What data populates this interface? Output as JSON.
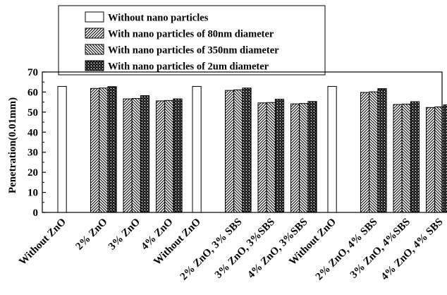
{
  "chart_data": {
    "type": "bar",
    "title": "",
    "xlabel": "",
    "ylabel": "Penetration(0.01mm)",
    "ylim": [
      0,
      70
    ],
    "yticks": [
      0,
      10,
      20,
      30,
      40,
      50,
      60,
      70
    ],
    "grid": false,
    "legend_position": "top-left, outside plot area",
    "categories": [
      "Without ZnO",
      "2% ZnO",
      "3% ZnO",
      "4% ZnO",
      "Without ZnO",
      "2% ZnO, 3% SBS",
      "3% ZnO, 3%SBS",
      "4% ZnO, 3%SBS",
      "Without ZnO",
      "2% ZnO, 4% SBS",
      "3% ZnO, 4%SBS",
      "4% ZnO, 4% SBS"
    ],
    "series": [
      {
        "name": "Without nano particles",
        "pattern": "white",
        "values": [
          62.8,
          null,
          null,
          null,
          62.8,
          null,
          null,
          null,
          62.8,
          null,
          null,
          null
        ]
      },
      {
        "name": "With nano particles of 80nm diameter",
        "pattern": "diag-right",
        "values": [
          null,
          61.8,
          56.6,
          55.6,
          null,
          60.8,
          54.6,
          54.1,
          null,
          59.8,
          53.8,
          52.3
        ]
      },
      {
        "name": "With nano particles of 350nm diameter",
        "pattern": "diag-left",
        "values": [
          null,
          62.0,
          56.8,
          55.8,
          null,
          61.1,
          54.8,
          54.3,
          null,
          60.1,
          54.0,
          52.6
        ]
      },
      {
        "name": "With nano particles of 2um diameter",
        "pattern": "dots",
        "values": [
          null,
          62.7,
          58.2,
          56.6,
          null,
          62.0,
          56.4,
          55.3,
          null,
          61.7,
          55.2,
          53.6
        ]
      }
    ]
  }
}
